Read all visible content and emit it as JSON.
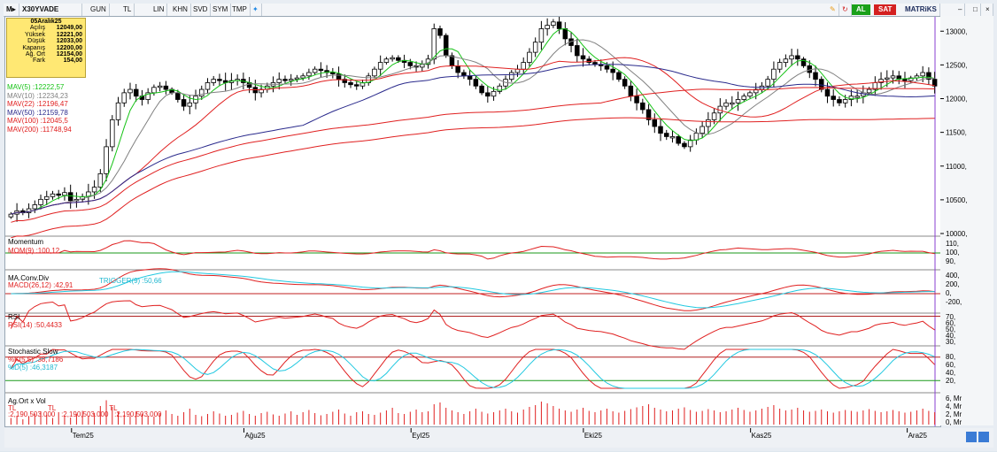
{
  "toolbar": {
    "symbol": "X30YVADE",
    "period": "GUN",
    "currency": "TL",
    "scale": "LIN",
    "b1": "KHN",
    "b2": "SVD",
    "b3": "SYM",
    "b4": "TMP",
    "buy": "AL",
    "sell": "SAT",
    "brand": "MATRiKS"
  },
  "info": {
    "date": "05Aralık25",
    "rows": [
      {
        "k": "Açılış",
        "v": "12049,00"
      },
      {
        "k": "Yüksek",
        "v": "12221,00"
      },
      {
        "k": "Düşük",
        "v": "12033,00"
      },
      {
        "k": "Kapanış",
        "v": "12200,00"
      },
      {
        "k": "Ağ. Ort",
        "v": "12154,00"
      },
      {
        "k": "Fark",
        "v": "154,00"
      }
    ]
  },
  "mav_labels": [
    {
      "label": "MAV(5)",
      "value": ":12222,57",
      "color": "#16c316"
    },
    {
      "label": "MAV(10)",
      "value": ":12234,23",
      "color": "#808080"
    },
    {
      "label": "MAV(22)",
      "value": ":12196,47",
      "color": "#e02020"
    },
    {
      "label": "MAV(50)",
      "value": ":12159,78",
      "color": "#2a2a8c"
    },
    {
      "label": "MAV(100)",
      "value": ":12045,5",
      "color": "#e02020"
    },
    {
      "label": "MAV(200)",
      "value": ":11748,94",
      "color": "#e02020"
    }
  ],
  "panels": {
    "momentum": {
      "title": "Momentum",
      "label": "MOM(9)",
      "value": ":100,12",
      "ticks": [
        "110,",
        "100,",
        "90,"
      ]
    },
    "macd": {
      "title": "MA.Conv.Div",
      "label": "MACD(26,12)",
      "value": ":42,91",
      "trig_label": "TRIGGER(9)",
      "trig_value": ":50,66",
      "ticks": [
        "400,",
        "200,",
        "0,",
        "-200,"
      ]
    },
    "rsi": {
      "title": "RSI",
      "label": "RSI(14)",
      "value": ":50,4433",
      "ticks": [
        "70,",
        "60,",
        "50,",
        "40,",
        "30,"
      ]
    },
    "stoch": {
      "title": "Stochastic Slow",
      "k_label": "%K(5,5)",
      "k_value": ":38,7186",
      "d_label": "%D(5)",
      "d_value": ":46,3187",
      "ticks": [
        "80,",
        "60,",
        "40,",
        "20,"
      ]
    },
    "vol": {
      "title": "Ag.Ort x Vol",
      "t1": "TL",
      "v1": ":2,190,503.000",
      "t2": "TL",
      "v2": ":2,190,503.000",
      "t3": "TL",
      "v3": ":2,190,503.000",
      "ticks": [
        "6, Mr",
        "4, Mr",
        "2, Mr",
        "0, Mr"
      ]
    }
  },
  "price_ticks": [
    "13000,",
    "12500,",
    "12000,",
    "11500,",
    "11000,",
    "10500,",
    "10000,"
  ],
  "month_labels": [
    "Tem25",
    "Ağu25",
    "Eyl25",
    "Eki25",
    "Kas25",
    "Ara25"
  ],
  "colors": {
    "up": "#ffffff",
    "down": "#000000",
    "mav5": "#16c316",
    "mav10": "#808080",
    "mav22": "#e02020",
    "mav50": "#2a2a8c",
    "red": "#e02020",
    "trigger": "#20c8e0"
  },
  "chart_data": {
    "type": "candlestick",
    "title": "X30YVADE",
    "ylim": [
      10000,
      13200
    ],
    "series": [
      {
        "name": "close",
        "values": [
          10300,
          10350,
          10320,
          10380,
          10440,
          10520,
          10560,
          10600,
          10580,
          10620,
          10500,
          10520,
          10560,
          10630,
          10700,
          10900,
          11300,
          11700,
          11950,
          12100,
          12150,
          12050,
          12000,
          12100,
          12180,
          12200,
          12150,
          12100,
          12000,
          11900,
          11950,
          12050,
          12150,
          12250,
          12300,
          12280,
          12250,
          12280,
          12300,
          12250,
          12180,
          12100,
          12150,
          12200,
          12250,
          12300,
          12280,
          12300,
          12320,
          12350,
          12400,
          12450,
          12430,
          12400,
          12380,
          12300,
          12250,
          12220,
          12200,
          12250,
          12350,
          12450,
          12550,
          12600,
          12620,
          12580,
          12550,
          12500,
          12480,
          12520,
          12600,
          13050,
          12950,
          12650,
          12500,
          12400,
          12350,
          12300,
          12200,
          12100,
          12050,
          12120,
          12200,
          12300,
          12400,
          12450,
          12550,
          12700,
          12850,
          13050,
          13100,
          13150,
          13050,
          12900,
          12800,
          12650,
          12600,
          12550,
          12520,
          12500,
          12450,
          12400,
          12300,
          12200,
          12050,
          11950,
          11850,
          11700,
          11600,
          11500,
          11450,
          11450,
          11350,
          11300,
          11400,
          11500,
          11600,
          11700,
          11800,
          11900,
          11950,
          11950,
          12000,
          12050,
          12100,
          12150,
          12200,
          12300,
          12450,
          12550,
          12600,
          12650,
          12600,
          12500,
          12400,
          12300,
          12150,
          12050,
          12000,
          11950,
          12000,
          12050,
          12050,
          12100,
          12150,
          12250,
          12300,
          12320,
          12350,
          12300,
          12280,
          12320,
          12350,
          12400,
          12300,
          12200
        ]
      }
    ],
    "volume_mr": [
      1.5,
      2.0,
      1.2,
      1.8,
      2.5,
      3.0,
      2.2,
      1.5,
      2.8,
      2.0,
      1.6,
      2.4,
      3.1,
      2.0,
      2.6,
      4.2,
      5.5,
      4.0,
      2.8,
      2.2,
      1.9,
      3.0,
      2.5,
      2.0,
      1.8,
      2.6,
      3.2,
      2.4,
      2.0,
      2.8,
      3.6,
      2.2,
      1.9,
      2.4,
      3.0,
      2.5,
      2.0,
      2.2,
      2.7,
      3.1,
      2.4,
      2.0,
      2.6,
      2.9,
      2.3,
      2.0,
      2.5,
      3.0,
      2.2,
      2.8,
      3.3,
      2.6,
      2.1,
      2.4,
      2.9,
      3.4,
      2.5,
      2.0,
      2.8,
      3.0,
      2.4,
      2.2,
      2.7,
      3.2,
      3.8,
      2.6,
      2.4,
      2.9,
      3.4,
      2.8,
      3.0,
      4.6,
      5.0,
      3.8,
      3.2,
      2.8,
      2.4,
      3.0,
      3.6,
      2.9,
      2.5,
      2.8,
      3.2,
      3.6,
      3.0,
      2.7,
      3.4,
      4.0,
      4.4,
      5.2,
      4.8,
      4.2,
      3.6,
      3.2,
      2.9,
      3.4,
      3.8,
      3.1,
      2.8,
      3.2,
      3.6,
      3.0,
      2.7,
      3.1,
      3.5,
      3.9,
      4.2,
      4.6,
      3.8,
      3.4,
      3.0,
      3.2,
      3.6,
      3.9,
      3.3,
      2.9,
      3.1,
      3.5,
      3.2,
      2.8,
      3.0,
      3.4,
      3.8,
      3.3,
      2.9,
      3.2,
      3.6,
      4.0,
      4.4,
      3.6,
      3.2,
      3.4,
      3.8,
      3.2,
      2.9,
      3.1,
      3.4,
      3.0,
      2.7,
      3.0,
      3.3,
      3.1,
      2.9,
      3.2,
      3.5,
      3.1,
      2.8,
      3.0,
      3.3,
      3.0,
      2.7,
      2.9,
      3.2,
      3.6,
      3.1,
      2.8
    ],
    "xlabel": "",
    "ylabel": ""
  }
}
